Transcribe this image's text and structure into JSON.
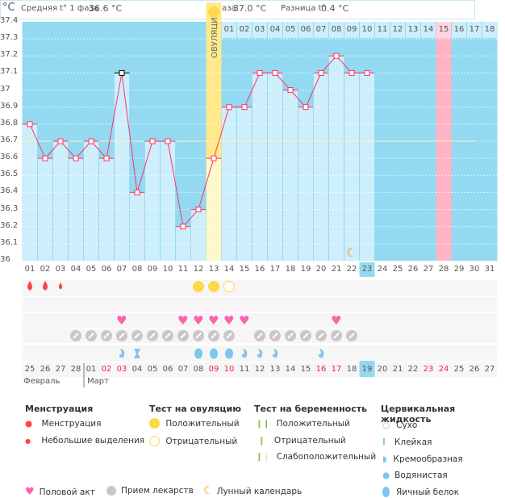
{
  "chart_data": {
    "type": "line",
    "yunit": "°C",
    "ylim": [
      36,
      37.4
    ],
    "yticks": [
      "37.4",
      "37.3",
      "37.2",
      "37.1",
      "37",
      "36.9",
      "36.8",
      "36.7",
      "36.6",
      "36.5",
      "36.4",
      "36.3",
      "36.2",
      "36.1",
      "36"
    ],
    "cycle_days": [
      "01",
      "02",
      "03",
      "04",
      "05",
      "06",
      "07",
      "08",
      "09",
      "10",
      "11",
      "12",
      "13",
      "14",
      "15",
      "16",
      "17",
      "18",
      "19",
      "20",
      "21",
      "22",
      "23",
      "24",
      "25",
      "26",
      "27",
      "28",
      "29",
      "30",
      "31"
    ],
    "temperatures": [
      36.8,
      36.6,
      36.7,
      36.6,
      36.7,
      36.6,
      37.1,
      36.4,
      36.7,
      36.7,
      36.2,
      36.3,
      36.6,
      36.9,
      36.9,
      37.1,
      37.1,
      37.0,
      36.9,
      37.1,
      37.2,
      37.1,
      37.1
    ],
    "cover_line": 36.7,
    "ovulation_day": 13,
    "ovulation_label": "ОВУЛЯЦИЯ",
    "expected_period_day": 28,
    "today_day": 23,
    "moon_day": 22,
    "phase2_days": [
      "01",
      "02",
      "03",
      "04",
      "05",
      "06",
      "07",
      "08",
      "09",
      "10",
      "11",
      "12",
      "13",
      "14",
      "15",
      "16",
      "17",
      "18"
    ],
    "calendar_dates": [
      "25",
      "26",
      "27",
      "28",
      "01",
      "02",
      "03",
      "04",
      "05",
      "06",
      "07",
      "08",
      "09",
      "10",
      "11",
      "12",
      "13",
      "14",
      "15",
      "16",
      "17",
      "18",
      "19",
      "20",
      "21",
      "22",
      "23",
      "24",
      "25",
      "26",
      "27"
    ],
    "weekend_dates_idx": [
      5,
      6,
      12,
      13,
      19,
      20,
      26,
      27
    ],
    "months": [
      "Февраль",
      "Март"
    ],
    "menstruation": {
      "1": "full",
      "2": "full",
      "3": "light"
    },
    "ovulation_test": {
      "12": "positive",
      "13": "positive",
      "14": "negative"
    },
    "intercourse": [
      7,
      11,
      12,
      13,
      14,
      15,
      21
    ],
    "medication": [
      4,
      5,
      6,
      7,
      8,
      9,
      10,
      11,
      12,
      13,
      14,
      16,
      17,
      18,
      19,
      20,
      21,
      22
    ],
    "cervical": {
      "7": "creamy",
      "8": "sticky",
      "12": "eggwhite",
      "13": "eggwhite",
      "14": "eggwhite",
      "15": "creamy",
      "16": "creamy",
      "17": "creamy",
      "20": "creamy"
    },
    "colors": {
      "above": "#93d9f2",
      "bar": "#cdeefb",
      "line": "#ff3366",
      "ovulation": "#ffe98a",
      "ovulation_pale": "#fff8cc",
      "period": "#ffb3c6",
      "blood": "#ff4444",
      "sun": "#ffd84a",
      "heart": "#ff5fb0",
      "pill": "#c8c8c8",
      "fluid": "#7cc6f0",
      "moon": "#f39c12",
      "weekend": "#ee2255",
      "test": "#8bc34a"
    }
  },
  "header": {
    "phase1": "Средняя t° 1 фаза",
    "phase1_val": "36.6 °C",
    "phase2": "2 фаза",
    "phase2_val": "37.0 °C",
    "diff": "Разница t°",
    "diff_val": "0.4 °C"
  },
  "legend": {
    "mens_title": "Менструация",
    "mens1": "Менструация",
    "mens2": "Небольшие выделения",
    "ov_title": "Тест на овуляцию",
    "ov1": "Положительный",
    "ov2": "Отрицательный",
    "preg_title": "Тест на беременность",
    "preg1": "Положительный",
    "preg2": "Отрицательный",
    "preg3": "Слабоположительный",
    "cerv_title": "Цервикальная жидкость",
    "cerv1": "Сухо",
    "cerv2": "Клейкая",
    "cerv3": "Кремообразная",
    "cerv4": "Водянистая",
    "cerv5": "Яичный белок",
    "sex": "Половой акт",
    "meds": "Прием лекарств",
    "moon": "Лунный календарь"
  }
}
